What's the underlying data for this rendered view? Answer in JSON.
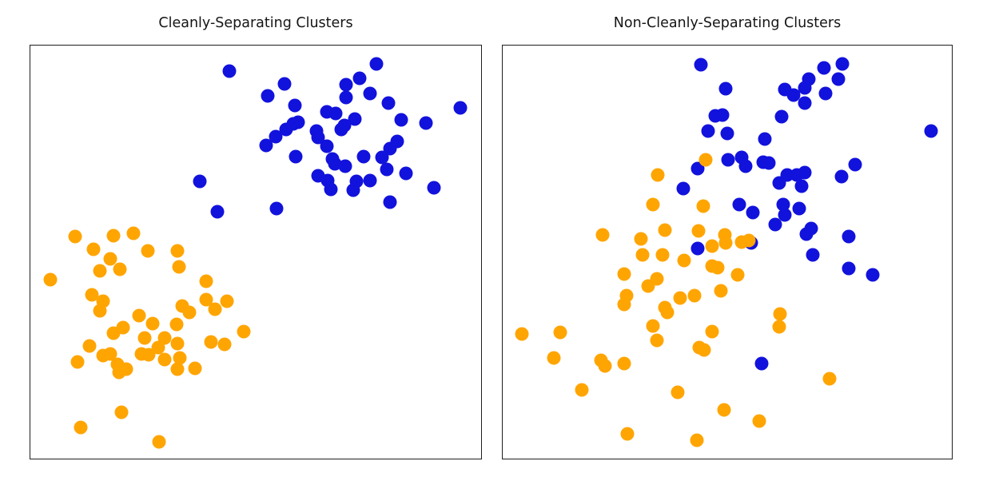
{
  "figure": {
    "background": "#ffffff",
    "frame_color": "#1f1f1f"
  },
  "chart_data": [
    {
      "type": "scatter",
      "title": "Cleanly-Separating Clusters",
      "xlabel": "",
      "ylabel": "",
      "axis_ticks": false,
      "frame": true,
      "legend": false,
      "coord_note": "points are [x,y] in normalized axes fractions, origin bottom-left, range 0-1",
      "series": [
        {
          "name": "blue-cluster",
          "color": "#1212dd",
          "marker": "circle",
          "points": [
            [
              0.442,
              0.938
            ],
            [
              0.564,
              0.908
            ],
            [
              0.767,
              0.956
            ],
            [
              0.73,
              0.921
            ],
            [
              0.7,
              0.906
            ],
            [
              0.701,
              0.875
            ],
            [
              0.753,
              0.883
            ],
            [
              0.527,
              0.879
            ],
            [
              0.795,
              0.861
            ],
            [
              0.587,
              0.854
            ],
            [
              0.954,
              0.85
            ],
            [
              0.657,
              0.84
            ],
            [
              0.678,
              0.836
            ],
            [
              0.719,
              0.823
            ],
            [
              0.822,
              0.821
            ],
            [
              0.878,
              0.813
            ],
            [
              0.696,
              0.807
            ],
            [
              0.594,
              0.815
            ],
            [
              0.583,
              0.811
            ],
            [
              0.567,
              0.796
            ],
            [
              0.689,
              0.796
            ],
            [
              0.634,
              0.794
            ],
            [
              0.638,
              0.778
            ],
            [
              0.544,
              0.78
            ],
            [
              0.523,
              0.759
            ],
            [
              0.657,
              0.757
            ],
            [
              0.813,
              0.767
            ],
            [
              0.797,
              0.751
            ],
            [
              0.588,
              0.732
            ],
            [
              0.671,
              0.726
            ],
            [
              0.74,
              0.732
            ],
            [
              0.781,
              0.73
            ],
            [
              0.675,
              0.713
            ],
            [
              0.698,
              0.707
            ],
            [
              0.79,
              0.701
            ],
            [
              0.834,
              0.69
            ],
            [
              0.638,
              0.684
            ],
            [
              0.659,
              0.674
            ],
            [
              0.723,
              0.671
            ],
            [
              0.754,
              0.674
            ],
            [
              0.666,
              0.651
            ],
            [
              0.716,
              0.649
            ],
            [
              0.896,
              0.655
            ],
            [
              0.375,
              0.671
            ],
            [
              0.797,
              0.62
            ],
            [
              0.415,
              0.597
            ],
            [
              0.546,
              0.605
            ]
          ]
        },
        {
          "name": "orange-cluster",
          "color": "#ffa502",
          "marker": "circle",
          "points": [
            [
              0.099,
              0.538
            ],
            [
              0.184,
              0.539
            ],
            [
              0.228,
              0.545
            ],
            [
              0.14,
              0.507
            ],
            [
              0.26,
              0.503
            ],
            [
              0.327,
              0.503
            ],
            [
              0.177,
              0.484
            ],
            [
              0.154,
              0.455
            ],
            [
              0.198,
              0.459
            ],
            [
              0.33,
              0.464
            ],
            [
              0.044,
              0.434
            ],
            [
              0.39,
              0.43
            ],
            [
              0.136,
              0.397
            ],
            [
              0.161,
              0.382
            ],
            [
              0.39,
              0.385
            ],
            [
              0.436,
              0.382
            ],
            [
              0.154,
              0.358
            ],
            [
              0.337,
              0.37
            ],
            [
              0.352,
              0.354
            ],
            [
              0.41,
              0.362
            ],
            [
              0.242,
              0.347
            ],
            [
              0.272,
              0.326
            ],
            [
              0.325,
              0.324
            ],
            [
              0.205,
              0.318
            ],
            [
              0.184,
              0.303
            ],
            [
              0.474,
              0.308
            ],
            [
              0.254,
              0.293
            ],
            [
              0.297,
              0.293
            ],
            [
              0.401,
              0.283
            ],
            [
              0.431,
              0.277
            ],
            [
              0.131,
              0.272
            ],
            [
              0.283,
              0.268
            ],
            [
              0.327,
              0.279
            ],
            [
              0.177,
              0.254
            ],
            [
              0.246,
              0.254
            ],
            [
              0.262,
              0.252
            ],
            [
              0.104,
              0.235
            ],
            [
              0.332,
              0.243
            ],
            [
              0.193,
              0.229
            ],
            [
              0.212,
              0.216
            ],
            [
              0.366,
              0.218
            ],
            [
              0.161,
              0.25
            ],
            [
              0.196,
              0.208
            ],
            [
              0.297,
              0.239
            ],
            [
              0.327,
              0.216
            ],
            [
              0.203,
              0.112
            ],
            [
              0.111,
              0.075
            ],
            [
              0.285,
              0.04
            ]
          ]
        }
      ]
    },
    {
      "type": "scatter",
      "title": "Non-Cleanly-Separating Clusters",
      "xlabel": "",
      "ylabel": "",
      "axis_ticks": false,
      "frame": true,
      "legend": false,
      "coord_note": "points are [x,y] in normalized axes fractions, origin bottom-left, range 0-1",
      "series": [
        {
          "name": "blue-cluster",
          "color": "#1212dd",
          "marker": "circle",
          "points": [
            [
              0.442,
              0.954
            ],
            [
              0.496,
              0.896
            ],
            [
              0.473,
              0.829
            ],
            [
              0.489,
              0.832
            ],
            [
              0.457,
              0.794
            ],
            [
              0.5,
              0.788
            ],
            [
              0.502,
              0.724
            ],
            [
              0.532,
              0.73
            ],
            [
              0.434,
              0.703
            ],
            [
              0.403,
              0.653
            ],
            [
              0.527,
              0.615
            ],
            [
              0.434,
              0.509
            ],
            [
              0.541,
              0.707
            ],
            [
              0.583,
              0.773
            ],
            [
              0.58,
              0.717
            ],
            [
              0.592,
              0.715
            ],
            [
              0.621,
              0.827
            ],
            [
              0.629,
              0.894
            ],
            [
              0.647,
              0.881
            ],
            [
              0.672,
              0.898
            ],
            [
              0.681,
              0.919
            ],
            [
              0.672,
              0.861
            ],
            [
              0.716,
              0.946
            ],
            [
              0.718,
              0.884
            ],
            [
              0.757,
              0.956
            ],
            [
              0.748,
              0.919
            ],
            [
              0.633,
              0.686
            ],
            [
              0.615,
              0.667
            ],
            [
              0.654,
              0.686
            ],
            [
              0.665,
              0.659
            ],
            [
              0.672,
              0.692
            ],
            [
              0.754,
              0.682
            ],
            [
              0.784,
              0.711
            ],
            [
              0.557,
              0.595
            ],
            [
              0.624,
              0.615
            ],
            [
              0.629,
              0.59
            ],
            [
              0.66,
              0.605
            ],
            [
              0.606,
              0.566
            ],
            [
              0.686,
              0.557
            ],
            [
              0.677,
              0.543
            ],
            [
              0.771,
              0.538
            ],
            [
              0.691,
              0.493
            ],
            [
              0.771,
              0.46
            ],
            [
              0.823,
              0.445
            ],
            [
              0.954,
              0.794
            ],
            [
              0.553,
              0.522
            ],
            [
              0.576,
              0.231
            ]
          ]
        },
        {
          "name": "orange-cluster",
          "color": "#ffa502",
          "marker": "circle",
          "points": [
            [
              0.452,
              0.724
            ],
            [
              0.346,
              0.686
            ],
            [
              0.335,
              0.615
            ],
            [
              0.447,
              0.611
            ],
            [
              0.222,
              0.541
            ],
            [
              0.307,
              0.532
            ],
            [
              0.362,
              0.553
            ],
            [
              0.436,
              0.551
            ],
            [
              0.495,
              0.541
            ],
            [
              0.496,
              0.522
            ],
            [
              0.532,
              0.524
            ],
            [
              0.548,
              0.528
            ],
            [
              0.312,
              0.493
            ],
            [
              0.355,
              0.493
            ],
            [
              0.404,
              0.48
            ],
            [
              0.466,
              0.514
            ],
            [
              0.466,
              0.466
            ],
            [
              0.479,
              0.462
            ],
            [
              0.523,
              0.445
            ],
            [
              0.271,
              0.447
            ],
            [
              0.344,
              0.435
            ],
            [
              0.323,
              0.418
            ],
            [
              0.275,
              0.395
            ],
            [
              0.27,
              0.374
            ],
            [
              0.395,
              0.389
            ],
            [
              0.427,
              0.395
            ],
            [
              0.362,
              0.366
            ],
            [
              0.367,
              0.353
            ],
            [
              0.486,
              0.407
            ],
            [
              0.335,
              0.322
            ],
            [
              0.344,
              0.287
            ],
            [
              0.466,
              0.308
            ],
            [
              0.438,
              0.268
            ],
            [
              0.449,
              0.264
            ],
            [
              0.043,
              0.301
            ],
            [
              0.128,
              0.306
            ],
            [
              0.113,
              0.243
            ],
            [
              0.218,
              0.237
            ],
            [
              0.227,
              0.225
            ],
            [
              0.271,
              0.231
            ],
            [
              0.177,
              0.166
            ],
            [
              0.39,
              0.16
            ],
            [
              0.493,
              0.118
            ],
            [
              0.278,
              0.06
            ],
            [
              0.433,
              0.044
            ],
            [
              0.617,
              0.351
            ],
            [
              0.615,
              0.32
            ],
            [
              0.727,
              0.193
            ],
            [
              0.571,
              0.091
            ]
          ]
        }
      ]
    }
  ]
}
